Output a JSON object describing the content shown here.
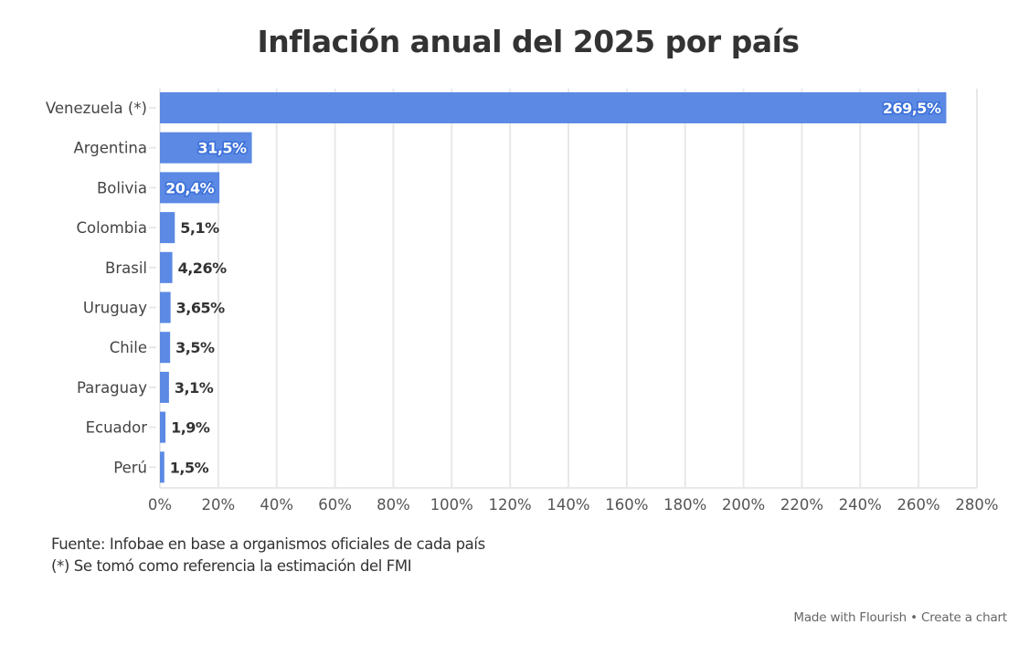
{
  "title": "Inflación anual del 2025 por país",
  "colors": {
    "bar": "#5b89e4",
    "grid": "#e8e8e8",
    "text": "#333333",
    "label_outline": "#3a6fd8"
  },
  "chart_data": {
    "type": "bar",
    "orientation": "horizontal",
    "title": "Inflación anual del 2025 por país",
    "categories": [
      "Venezuela (*)",
      "Argentina",
      "Bolivia",
      "Colombia",
      "Brasil",
      "Uruguay",
      "Chile",
      "Paraguay",
      "Ecuador",
      "Perú"
    ],
    "values": [
      269.5,
      31.5,
      20.4,
      5.1,
      4.26,
      3.65,
      3.5,
      3.1,
      1.9,
      1.5
    ],
    "data_labels": [
      "269,5%",
      "31,5%",
      "20,4%",
      "5,1%",
      "4,26%",
      "3,65%",
      "3,5%",
      "3,1%",
      "1,9%",
      "1,5%"
    ],
    "xlim": [
      0,
      280
    ],
    "xticks": [
      0,
      20,
      40,
      60,
      80,
      100,
      120,
      140,
      160,
      180,
      200,
      220,
      240,
      260,
      280
    ],
    "xtick_labels": [
      "0%",
      "20%",
      "40%",
      "60%",
      "80%",
      "100%",
      "120%",
      "140%",
      "160%",
      "180%",
      "200%",
      "220%",
      "240%",
      "260%",
      "280%"
    ],
    "xlabel": "",
    "ylabel": "",
    "grid": true,
    "legend": "none"
  },
  "notes": {
    "source": "Fuente: Infobae en base a organismos oficiales de cada país",
    "footnote": "(*) Se tomó como referencia la estimación del FMI"
  },
  "footer": {
    "made_with": "Made with Flourish",
    "separator": "•",
    "create": "Create a chart"
  }
}
